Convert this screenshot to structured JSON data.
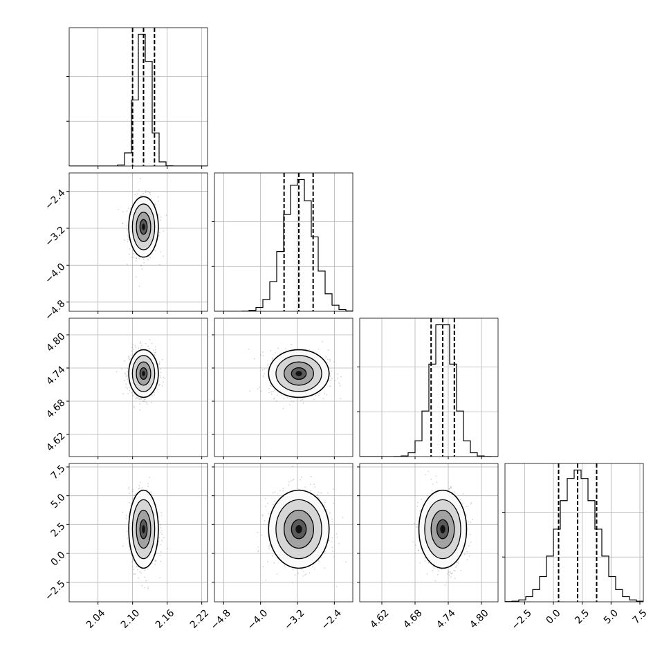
{
  "chart_data": {
    "type": "corner",
    "parameters": [
      {
        "id": "p0",
        "range": [
          1.99,
          2.23
        ],
        "ticks": [
          2.04,
          2.1,
          2.16,
          2.22
        ],
        "tick_labels": [
          "2.04",
          "2.10",
          "2.16",
          "2.22"
        ],
        "quantiles": [
          2.1,
          2.119,
          2.138
        ],
        "mean": 2.119,
        "sd": 0.0125
      },
      {
        "id": "p1",
        "range": [
          -5.0,
          -2.0
        ],
        "ticks": [
          -4.8,
          -4.0,
          -3.2,
          -2.4
        ],
        "tick_labels": [
          "−4.8",
          "−4.0",
          "−3.2",
          "−2.4"
        ],
        "quantiles": [
          -3.49,
          -3.17,
          -2.86
        ],
        "mean": -3.17,
        "sd": 0.32
      },
      {
        "id": "p2",
        "range": [
          4.58,
          4.83
        ],
        "ticks": [
          4.62,
          4.68,
          4.74,
          4.8
        ],
        "tick_labels": [
          "4.62",
          "4.68",
          "4.74",
          "4.80"
        ],
        "quantiles": [
          4.709,
          4.73,
          4.751
        ],
        "mean": 4.73,
        "sd": 0.021
      },
      {
        "id": "p3",
        "range": [
          -4.2,
          7.8
        ],
        "ticks": [
          -2.5,
          0.0,
          2.5,
          5.0,
          7.5
        ],
        "tick_labels": [
          "−2.5",
          "0.0",
          "2.5",
          "5.0",
          "7.5"
        ],
        "quantiles": [
          0.45,
          2.1,
          3.75
        ],
        "mean": 2.1,
        "sd": 1.65
      }
    ],
    "grid": true,
    "histogram_bins": 20,
    "scatter_color": "#808080",
    "contour_color": "#000000",
    "density_colormap": "greys"
  }
}
